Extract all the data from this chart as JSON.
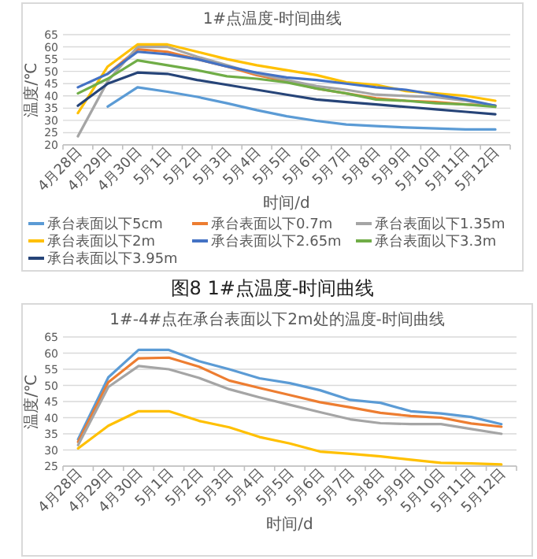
{
  "chart_data": [
    {
      "type": "line",
      "title": "1#点温度-时间曲线",
      "xlabel": "时间/d",
      "ylabel": "温度/℃",
      "categories": [
        "4月28日",
        "4月29日",
        "4月30日",
        "5月1日",
        "5月2日",
        "5月3日",
        "5月4日",
        "5月5日",
        "5月6日",
        "5月7日",
        "5月8日",
        "5月9日",
        "5月10日",
        "5月11日",
        "5月12日"
      ],
      "ylim": [
        20,
        65
      ],
      "yticks": [
        20,
        25,
        30,
        35,
        40,
        45,
        50,
        55,
        60,
        65
      ],
      "grid": "y",
      "legend": "bottom",
      "annotations": [
        "图8 1#点温度-时间曲线"
      ],
      "series": [
        {
          "name": "承台表面以下5cm",
          "color": "#5b9bd5",
          "values": [
            null,
            35.6,
            43.5,
            41.7,
            39.6,
            37,
            34.2,
            31.7,
            29.8,
            28.3,
            27.7,
            27.1,
            26.7,
            26.3,
            26.3
          ]
        },
        {
          "name": "承台表面以下0.7m",
          "color": "#ed7d31",
          "values": [
            null,
            49,
            59,
            58,
            55,
            52,
            48.5,
            46,
            43,
            41,
            39,
            38,
            37.5,
            36.5,
            36
          ]
        },
        {
          "name": "承台表面以下1.35m",
          "color": "#a5a5a5",
          "values": [
            23.5,
            46,
            60,
            60,
            56,
            52.5,
            49,
            46.5,
            44,
            42.5,
            40.5,
            40,
            39.5,
            38,
            36
          ]
        },
        {
          "name": "承台表面以下2m",
          "color": "#ffc000",
          "values": [
            33,
            52,
            61,
            61,
            58,
            55,
            52.5,
            50.5,
            48.5,
            45.5,
            44.5,
            42,
            41,
            40,
            38
          ]
        },
        {
          "name": "承台表面以下2.65m",
          "color": "#4472c4",
          "values": [
            43.5,
            49,
            58,
            57,
            55,
            52,
            49.5,
            47.5,
            46.5,
            45,
            43.5,
            42.5,
            40.5,
            38.5,
            36
          ]
        },
        {
          "name": "承台表面以下3.3m",
          "color": "#70ad47",
          "values": [
            41,
            47,
            54.5,
            52.5,
            50.5,
            48,
            47,
            45.5,
            43,
            41,
            38.5,
            38,
            37,
            36.5,
            35.5
          ]
        },
        {
          "name": "承台表面以下3.95m",
          "color": "#264478",
          "values": [
            36,
            45,
            49.5,
            49,
            46.5,
            44.5,
            42.5,
            40.5,
            38.5,
            37.5,
            36.5,
            35.5,
            34.5,
            33.5,
            32.5
          ]
        }
      ]
    },
    {
      "type": "line",
      "title": "1#-4#点在承台表面以下2m处的温度-时间曲线",
      "xlabel": "时间/d",
      "ylabel": "温度/℃",
      "categories": [
        "4月28日",
        "4月29日",
        "4月30日",
        "5月1日",
        "5月2日",
        "5月3日",
        "5月4日",
        "5月5日",
        "5月6日",
        "5月7日",
        "5月8日",
        "5月9日",
        "5月10日",
        "5月11日",
        "5月12日"
      ],
      "ylim": [
        25,
        65
      ],
      "yticks": [
        25,
        30,
        35,
        40,
        45,
        50,
        55,
        60,
        65
      ],
      "grid": "y",
      "series": [
        {
          "color": "#5b9bd5",
          "values": [
            33.3,
            52.5,
            61,
            61,
            57.5,
            55,
            52.2,
            50.7,
            48.5,
            45.5,
            44.6,
            42,
            41.3,
            40.2,
            38
          ]
        },
        {
          "color": "#ed7d31",
          "values": [
            32.5,
            51,
            58.4,
            58.6,
            55.8,
            51.5,
            49.2,
            47,
            44.8,
            43.2,
            41.5,
            40.5,
            40,
            38.2,
            37.2
          ]
        },
        {
          "color": "#a5a5a5",
          "values": [
            31.5,
            49.5,
            56,
            55,
            52.3,
            48.8,
            46.3,
            44,
            41.7,
            39.5,
            38.3,
            38,
            38,
            36.5,
            35
          ]
        },
        {
          "color": "#ffc000",
          "values": [
            30.5,
            37.5,
            42,
            42,
            39,
            37,
            34,
            32,
            29.5,
            28.8,
            28,
            27,
            26,
            25.8,
            25.5
          ]
        }
      ]
    }
  ]
}
